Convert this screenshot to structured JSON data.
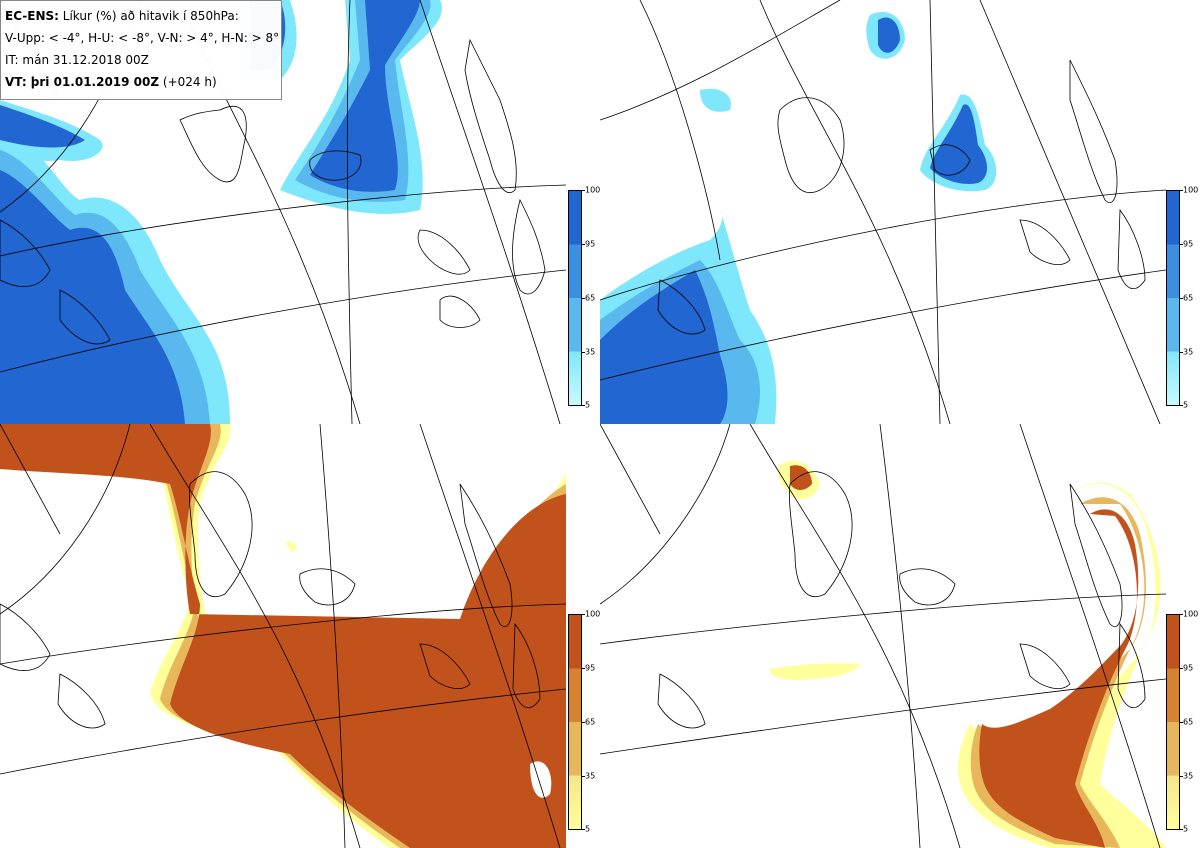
{
  "header": {
    "title_bold": "EC-ENS:",
    "title_rest": "Líkur (%) að hitavik í 850hPa:",
    "legend_line": "V-Upp: < -4°, H-U: < -8°, V-N: > 4°, H-N: > 8°",
    "init_time": "IT: mán 31.12.2018 00Z",
    "valid_bold": "VT: þri 01.01.2019 00Z",
    "valid_rest": "(+024 h)"
  },
  "colorbar_blue": {
    "labels": [
      "100",
      "95",
      "65",
      "35",
      "5"
    ],
    "colors": [
      "#2166d1",
      "#3b8fe0",
      "#59b9ef",
      "#7fe7fb",
      "#c6fbff"
    ]
  },
  "colorbar_orange": {
    "labels": [
      "100",
      "95",
      "65",
      "35",
      "5"
    ],
    "colors": [
      "#c2521b",
      "#d6822f",
      "#e8b75c",
      "#f6e58a",
      "#ffff9c"
    ]
  },
  "colors": {
    "cold_core": "#2166d1",
    "cold_mid": "#4aa3e8",
    "cold_edge": "#7fe7fb",
    "warm_core": "#c2521b",
    "warm_mid": "#e0a34a",
    "warm_edge": "#ffff9c",
    "coast": "#000000",
    "grid": "#000000"
  }
}
